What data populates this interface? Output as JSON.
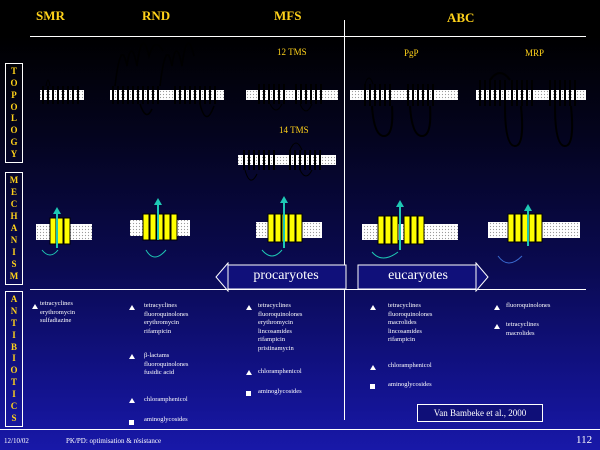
{
  "families": {
    "smr": "SMR",
    "rnd": "RND",
    "mfs": "MFS",
    "abc": "ABC"
  },
  "side": {
    "topology": [
      "T",
      "O",
      "P",
      "O",
      "L",
      "O",
      "G",
      "Y"
    ],
    "mechanism": [
      "M",
      "E",
      "C",
      "H",
      "A",
      "N",
      "I",
      "S",
      "M"
    ],
    "antibiotics": [
      "A",
      "N",
      "T",
      "I",
      "B",
      "I",
      "O",
      "T",
      "I",
      "C",
      "S"
    ]
  },
  "tms12": "12 TMS",
  "tms14": "14 TMS",
  "pgp": "PgP",
  "mrp": "MRP",
  "procaryotes": "procaryotes",
  "eucaryotes": "eucaryotes",
  "drugs": {
    "smr": [
      "tetracyclines\nerythromycin\nsulfadiazine"
    ],
    "rnd": [
      "tetracyclines\nfluoroquinolones\nerythromycin\nrifampicin",
      "β-lactams\nfluoroquinolones\nfusidic acid",
      "chloramphenicol",
      "aminoglycosides"
    ],
    "mfs": [
      "tetracyclines\nfluoroquinolones\nerythromycin\nlincosamides\nrifampicin\npristinamycin",
      "chloramphenicol",
      "aminoglycosides"
    ],
    "pgp": [
      "tetracyclines\nfluoroquinolones\nmacrolides\nlincosamides\nrifampicin",
      "chloramphenicol",
      "aminoglycosides"
    ],
    "mrp": [
      "fluoroquinolones",
      "tetracyclines\nmacrolides"
    ]
  },
  "reference": "Van Bambeke et al., 2000",
  "footer": {
    "date": "12/10/02",
    "title": "PK/PD: optimisation & résistance",
    "page": "112"
  },
  "colors": {
    "accent": "#ffd21a",
    "transporter": "#ffff00",
    "arrow": "#1ec8b4",
    "background": "#0a0a52"
  }
}
